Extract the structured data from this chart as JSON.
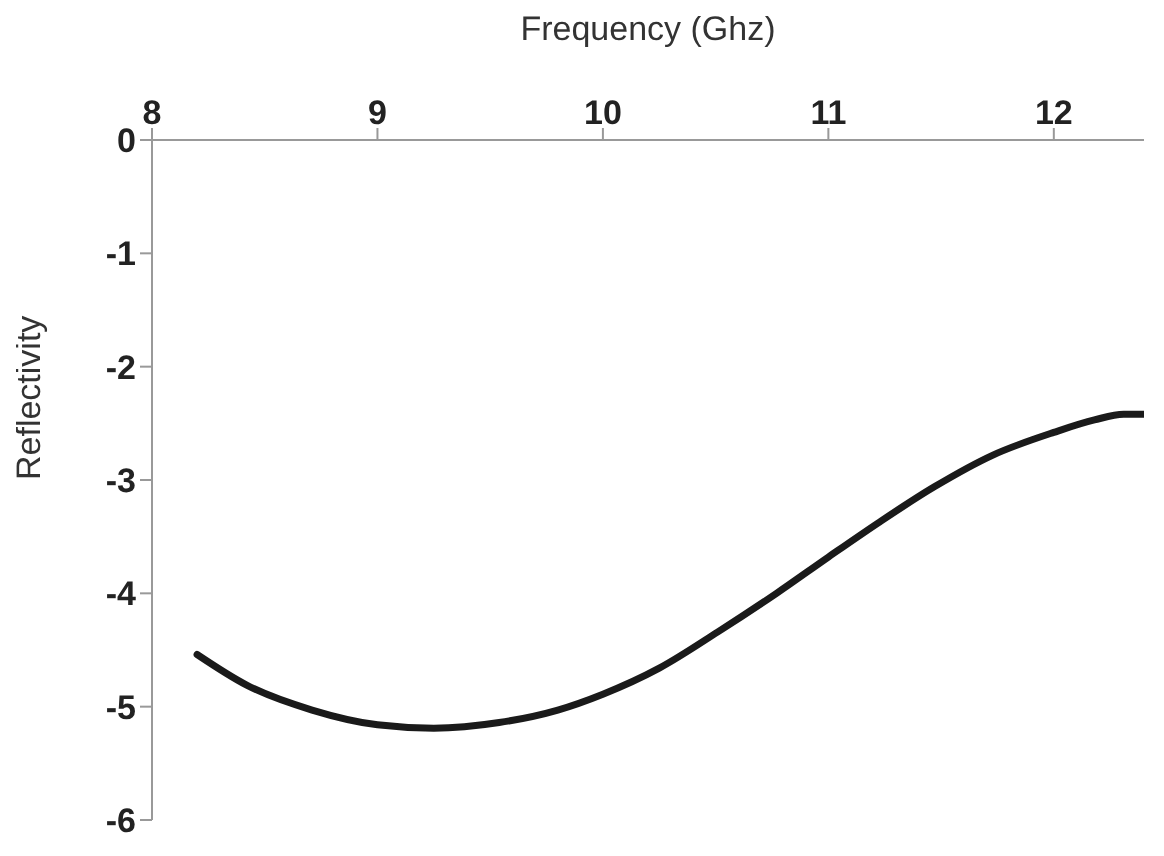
{
  "chart_data": {
    "type": "line",
    "xlabel": "Frequency (Ghz)",
    "ylabel": "Reflectivity",
    "x": [
      8.2,
      8.42,
      8.71,
      9.0,
      9.25,
      9.54,
      9.8,
      10.0,
      10.25,
      10.51,
      10.77,
      11.0,
      11.22,
      11.47,
      11.73,
      12.0,
      12.18,
      12.31,
      12.4
    ],
    "series": [
      {
        "color": "#1a1a1a",
        "values": [
          -4.54,
          -4.81,
          -5.03,
          -5.16,
          -5.19,
          -5.14,
          -5.03,
          -4.89,
          -4.66,
          -4.34,
          -4.0,
          -3.68,
          -3.38,
          -3.06,
          -2.78,
          -2.58,
          -2.47,
          -2.42,
          -2.42
        ]
      }
    ],
    "xlim": [
      8,
      12.4
    ],
    "xticks": [
      8,
      9,
      10,
      11,
      12
    ],
    "ylim": [
      -6,
      0
    ],
    "yticks": [
      0,
      -1,
      -2,
      -3,
      -4,
      -5,
      -6
    ],
    "grid": false,
    "legend": false,
    "marker": "none",
    "line_style": "solid"
  }
}
